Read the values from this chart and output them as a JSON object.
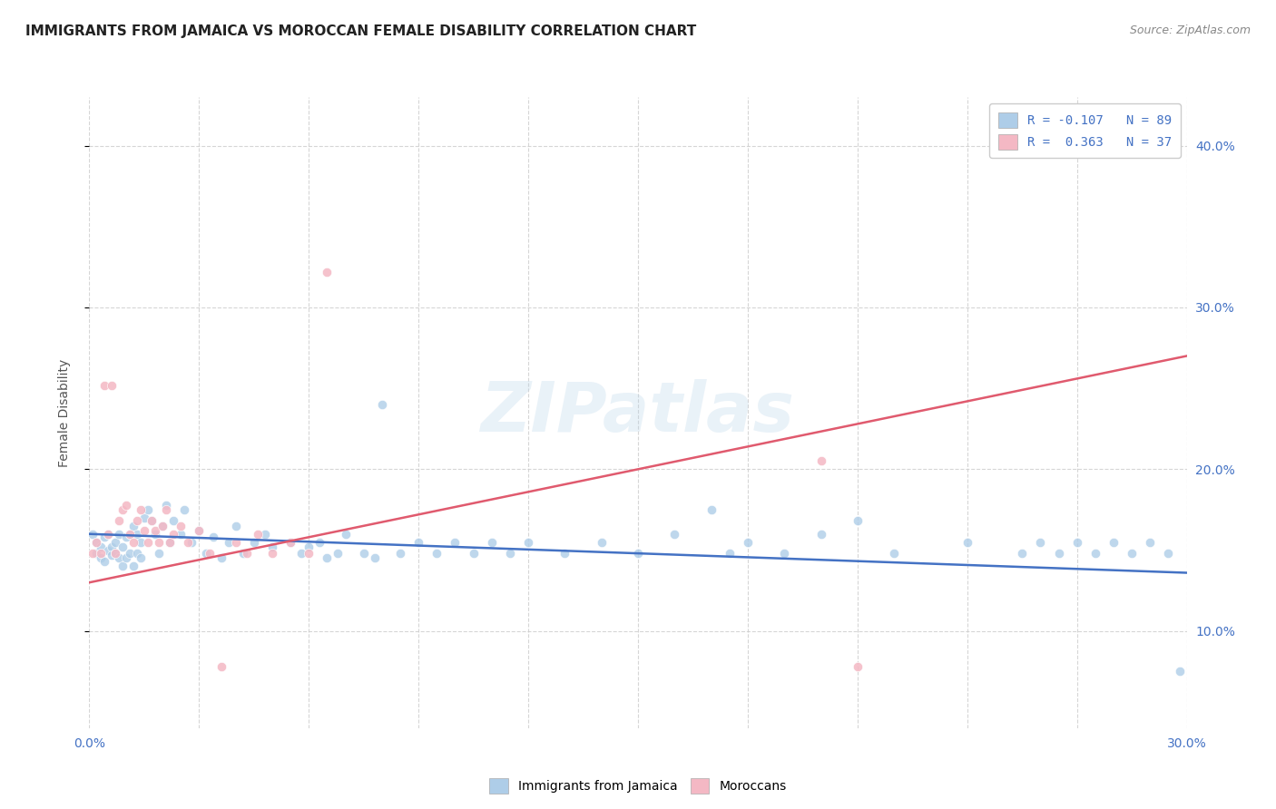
{
  "title": "IMMIGRANTS FROM JAMAICA VS MOROCCAN FEMALE DISABILITY CORRELATION CHART",
  "source": "Source: ZipAtlas.com",
  "ylabel": "Female Disability",
  "xlim": [
    0.0,
    0.3
  ],
  "ylim": [
    0.04,
    0.43
  ],
  "yticks": [
    0.1,
    0.2,
    0.3,
    0.4
  ],
  "ytick_labels": [
    "10.0%",
    "20.0%",
    "30.0%",
    "40.0%"
  ],
  "xticks": [
    0.0,
    0.03,
    0.06,
    0.09,
    0.12,
    0.15,
    0.18,
    0.21,
    0.24,
    0.27,
    0.3
  ],
  "xtick_label_left": "0.0%",
  "xtick_label_right": "30.0%",
  "legend_label1": "R = -0.107   N = 89",
  "legend_label2": "R =  0.363   N = 37",
  "legend_color1": "#aecde8",
  "legend_color2": "#f4b8c4",
  "dot_color1": "#aecde8",
  "dot_color2": "#f4b8c4",
  "line_color1": "#4472c4",
  "line_color2": "#e05a6e",
  "watermark": "ZIPatlas",
  "footer_label1": "Immigrants from Jamaica",
  "footer_label2": "Moroccans",
  "jamaica_x": [
    0.001,
    0.002,
    0.002,
    0.003,
    0.003,
    0.004,
    0.004,
    0.005,
    0.005,
    0.006,
    0.006,
    0.007,
    0.007,
    0.008,
    0.008,
    0.009,
    0.009,
    0.01,
    0.01,
    0.011,
    0.011,
    0.012,
    0.012,
    0.013,
    0.013,
    0.014,
    0.014,
    0.015,
    0.016,
    0.017,
    0.018,
    0.019,
    0.02,
    0.021,
    0.022,
    0.023,
    0.025,
    0.026,
    0.028,
    0.03,
    0.032,
    0.034,
    0.036,
    0.038,
    0.04,
    0.042,
    0.045,
    0.048,
    0.05,
    0.055,
    0.058,
    0.06,
    0.063,
    0.065,
    0.068,
    0.07,
    0.075,
    0.078,
    0.08,
    0.085,
    0.09,
    0.095,
    0.1,
    0.105,
    0.11,
    0.115,
    0.12,
    0.13,
    0.14,
    0.15,
    0.16,
    0.17,
    0.175,
    0.18,
    0.19,
    0.2,
    0.21,
    0.22,
    0.24,
    0.255,
    0.26,
    0.265,
    0.27,
    0.275,
    0.28,
    0.285,
    0.29,
    0.295,
    0.298
  ],
  "jamaica_y": [
    0.16,
    0.155,
    0.148,
    0.152,
    0.145,
    0.158,
    0.143,
    0.15,
    0.16,
    0.152,
    0.147,
    0.155,
    0.148,
    0.16,
    0.145,
    0.152,
    0.14,
    0.158,
    0.145,
    0.16,
    0.148,
    0.165,
    0.14,
    0.16,
    0.148,
    0.155,
    0.145,
    0.17,
    0.175,
    0.168,
    0.16,
    0.148,
    0.165,
    0.178,
    0.155,
    0.168,
    0.16,
    0.175,
    0.155,
    0.162,
    0.148,
    0.158,
    0.145,
    0.155,
    0.165,
    0.148,
    0.155,
    0.16,
    0.152,
    0.155,
    0.148,
    0.152,
    0.155,
    0.145,
    0.148,
    0.16,
    0.148,
    0.145,
    0.24,
    0.148,
    0.155,
    0.148,
    0.155,
    0.148,
    0.155,
    0.148,
    0.155,
    0.148,
    0.155,
    0.148,
    0.16,
    0.175,
    0.148,
    0.155,
    0.148,
    0.16,
    0.168,
    0.148,
    0.155,
    0.148,
    0.155,
    0.148,
    0.155,
    0.148,
    0.155,
    0.148,
    0.155,
    0.148,
    0.075
  ],
  "morocco_x": [
    0.001,
    0.002,
    0.003,
    0.004,
    0.005,
    0.006,
    0.007,
    0.008,
    0.009,
    0.01,
    0.011,
    0.012,
    0.013,
    0.014,
    0.015,
    0.016,
    0.017,
    0.018,
    0.019,
    0.02,
    0.021,
    0.022,
    0.023,
    0.025,
    0.027,
    0.03,
    0.033,
    0.036,
    0.04,
    0.043,
    0.046,
    0.05,
    0.055,
    0.06,
    0.065,
    0.2,
    0.21
  ],
  "morocco_y": [
    0.148,
    0.155,
    0.148,
    0.252,
    0.16,
    0.252,
    0.148,
    0.168,
    0.175,
    0.178,
    0.16,
    0.155,
    0.168,
    0.175,
    0.162,
    0.155,
    0.168,
    0.162,
    0.155,
    0.165,
    0.175,
    0.155,
    0.16,
    0.165,
    0.155,
    0.162,
    0.148,
    0.078,
    0.155,
    0.148,
    0.16,
    0.148,
    0.155,
    0.148,
    0.322,
    0.205,
    0.078
  ],
  "jamaica_line_x": [
    0.0,
    0.3
  ],
  "jamaica_line_y": [
    0.16,
    0.136
  ],
  "morocco_line_x": [
    0.0,
    0.3
  ],
  "morocco_line_y": [
    0.13,
    0.27
  ],
  "background_color": "#ffffff",
  "grid_color": "#cccccc",
  "title_fontsize": 11,
  "tick_color": "#4472c4"
}
